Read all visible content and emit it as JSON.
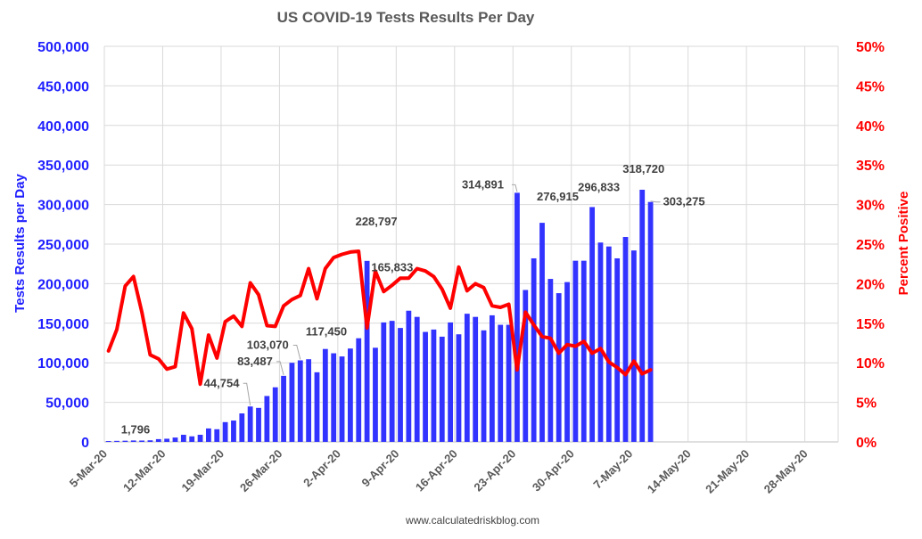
{
  "chart_data": {
    "type": "bar",
    "title": "US COVID-19 Tests Results Per Day",
    "ylabel": "Tests Results per Day",
    "y2label": "Percent Positive",
    "source": "www.calculatedriskblog.com",
    "ylim": [
      0,
      500000
    ],
    "y2lim": [
      0,
      50
    ],
    "x_start": "2020-03-05",
    "x_end": "2020-05-31",
    "xticks": [
      "5-Mar-20",
      "12-Mar-20",
      "19-Mar-20",
      "26-Mar-20",
      "2-Apr-20",
      "9-Apr-20",
      "16-Apr-20",
      "23-Apr-20",
      "30-Apr-20",
      "7-May-20",
      "14-May-20",
      "21-May-20",
      "28-May-20"
    ],
    "yticks": [
      "0",
      "50,000",
      "100,000",
      "150,000",
      "200,000",
      "250,000",
      "300,000",
      "350,000",
      "400,000",
      "450,000",
      "500,000"
    ],
    "y2ticks": [
      "0%",
      "5%",
      "10%",
      "15%",
      "20%",
      "25%",
      "30%",
      "35%",
      "40%",
      "45%",
      "50%"
    ],
    "grid": true,
    "series": [
      {
        "name": "Tests Results per Day",
        "kind": "bar",
        "axis": "left",
        "color": "#3333ff",
        "values": [
          1100,
          1300,
          1500,
          1796,
          1700,
          2000,
          3500,
          4000,
          5500,
          9000,
          7000,
          9000,
          17000,
          16000,
          25000,
          27000,
          36000,
          44754,
          43000,
          58000,
          69000,
          83487,
          100000,
          103070,
          104500,
          88000,
          117450,
          112000,
          108000,
          118000,
          131000,
          228797,
          119000,
          151000,
          153000,
          144000,
          165833,
          158000,
          139000,
          142000,
          133000,
          151000,
          136000,
          162000,
          158000,
          141000,
          160000,
          148000,
          148000,
          314891,
          192000,
          232000,
          276915,
          206000,
          188000,
          202000,
          229000,
          229000,
          296833,
          252000,
          247000,
          232000,
          259000,
          242000,
          318720,
          303275
        ]
      },
      {
        "name": "Percent Positive",
        "kind": "line",
        "axis": "right",
        "color": "#ff0000",
        "values": [
          11.5,
          14.2,
          19.7,
          20.9,
          16.4,
          11.0,
          10.5,
          9.2,
          9.5,
          16.3,
          14.3,
          7.3,
          13.5,
          10.6,
          15.2,
          15.9,
          14.6,
          20.1,
          18.6,
          14.7,
          14.6,
          17.2,
          18.0,
          18.5,
          21.9,
          18.1,
          21.9,
          23.3,
          23.7,
          24.0,
          24.1,
          14.4,
          21.6,
          19.0,
          19.8,
          20.7,
          20.7,
          21.9,
          21.6,
          20.9,
          19.3,
          16.9,
          22.1,
          19.1,
          20.0,
          19.5,
          17.2,
          17.0,
          17.4,
          9.1,
          16.4,
          14.8,
          13.3,
          13.1,
          11.2,
          12.3,
          12.1,
          12.7,
          11.2,
          11.8,
          10.1,
          9.4,
          8.5,
          10.2,
          8.6,
          9.1
        ]
      }
    ],
    "annotations": [
      {
        "index": 3,
        "text": "1,796"
      },
      {
        "index": 17,
        "text": "44,754"
      },
      {
        "index": 21,
        "text": "83,487"
      },
      {
        "index": 23,
        "text": "103,070"
      },
      {
        "index": 26,
        "text": "117,450"
      },
      {
        "index": 31,
        "text": "228,797"
      },
      {
        "index": 36,
        "text": "165,833"
      },
      {
        "index": 49,
        "text": "314,891"
      },
      {
        "index": 52,
        "text": "276,915"
      },
      {
        "index": 58,
        "text": "296,833"
      },
      {
        "index": 64,
        "text": "318,720"
      },
      {
        "index": 65,
        "text": "303,275"
      }
    ]
  }
}
